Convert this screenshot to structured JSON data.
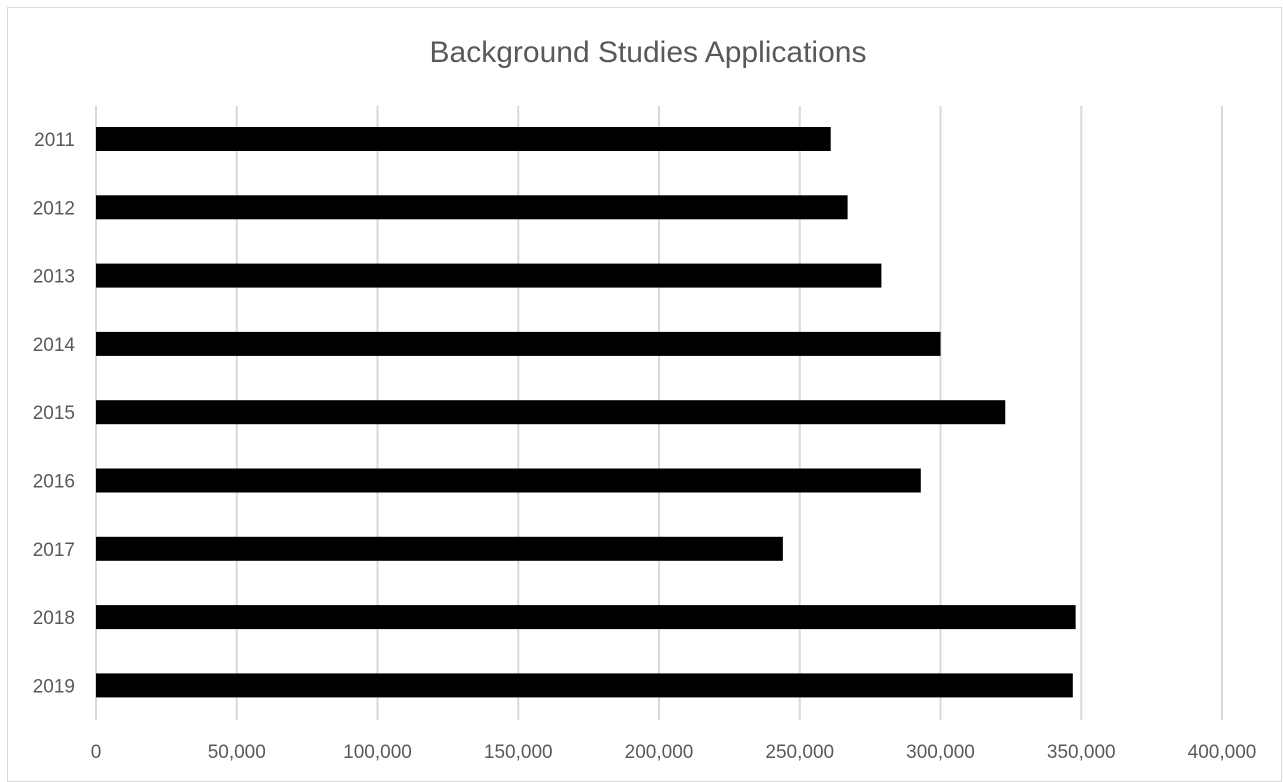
{
  "chart_data": {
    "type": "bar",
    "orientation": "horizontal",
    "title": "Background Studies Applications",
    "xlabel": "",
    "ylabel": "",
    "categories": [
      "2011",
      "2012",
      "2013",
      "2014",
      "2015",
      "2016",
      "2017",
      "2018",
      "2019"
    ],
    "values": [
      261000,
      267000,
      279000,
      300000,
      323000,
      293000,
      244000,
      348000,
      347000
    ],
    "xlim": [
      0,
      400000
    ],
    "x_ticks": [
      0,
      50000,
      100000,
      150000,
      200000,
      250000,
      300000,
      350000,
      400000
    ],
    "x_tick_labels": [
      "0",
      "50,000",
      "100,000",
      "150,000",
      "200,000",
      "250,000",
      "300,000",
      "350,000",
      "400,000"
    ],
    "grid": "vertical",
    "legend": "none",
    "bar_color": "#000000",
    "gridline_color": "#d9d9d9",
    "text_color": "#595959"
  }
}
